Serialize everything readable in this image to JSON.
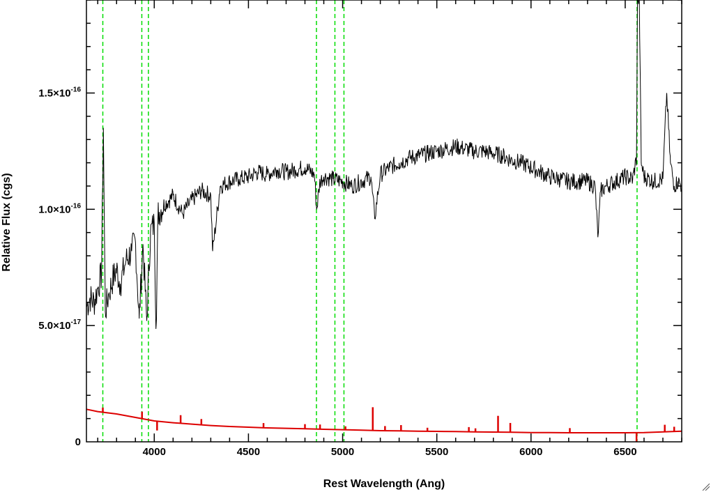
{
  "chart_data": {
    "type": "line",
    "title": "",
    "xlabel": "Rest Wavelength (Ang)",
    "ylabel": "Relative Flux (cgs)",
    "xlim": [
      3640,
      6800
    ],
    "ylim": [
      0,
      1.9e-16
    ],
    "x_ticks": [
      {
        "value": 4000,
        "label": "4000"
      },
      {
        "value": 4500,
        "label": "4500"
      },
      {
        "value": 5000,
        "label": "5000"
      },
      {
        "value": 5500,
        "label": "5500"
      },
      {
        "value": 6000,
        "label": "6000"
      },
      {
        "value": 6500,
        "label": "6500"
      }
    ],
    "y_ticks": [
      {
        "value": 0,
        "mantissa": "0",
        "exponent": ""
      },
      {
        "value": 5e-17,
        "mantissa": "5.0×10",
        "exponent": "-17"
      },
      {
        "value": 1e-16,
        "mantissa": "1.0×10",
        "exponent": "-16"
      },
      {
        "value": 1.5e-16,
        "mantissa": "1.5×10",
        "exponent": "-16"
      }
    ],
    "grid": false,
    "series": [
      {
        "color": "#000000",
        "style": "solid",
        "x": [
          3640,
          3660,
          3680,
          3700,
          3720,
          3730,
          3740,
          3760,
          3780,
          3800,
          3820,
          3850,
          3880,
          3900,
          3920,
          3940,
          3960,
          3980,
          4000,
          4010,
          4020,
          4050,
          4080,
          4100,
          4150,
          4200,
          4250,
          4300,
          4310,
          4350,
          4400,
          4450,
          4500,
          4550,
          4600,
          4650,
          4700,
          4750,
          4800,
          4850,
          4862,
          4880,
          4900,
          4950,
          5000,
          5050,
          5100,
          5150,
          5170,
          5200,
          5250,
          5300,
          5350,
          5400,
          5450,
          5500,
          5550,
          5600,
          5650,
          5700,
          5750,
          5800,
          5850,
          5900,
          5950,
          6000,
          6050,
          6100,
          6150,
          6200,
          6250,
          6300,
          6340,
          6355,
          6370,
          6400,
          6450,
          6500,
          6540,
          6560,
          6565,
          6575,
          6585,
          6600,
          6650,
          6700,
          6720,
          6740,
          6760,
          6780,
          6800
        ],
        "y": [
          5.8e-17,
          6.2e-17,
          6e-17,
          6.6e-17,
          7.2e-17,
          1.35e-16,
          5.6e-17,
          6.4e-17,
          7e-17,
          7.4e-17,
          6.8e-17,
          7.8e-17,
          8.2e-17,
          8.6e-17,
          5.3e-17,
          8.5e-17,
          5.2e-17,
          9e-17,
          9.4e-17,
          5e-17,
          9.8e-17,
          1.02e-16,
          1.04e-16,
          1.06e-16,
          9.8e-17,
          1.04e-16,
          1.08e-16,
          1.06e-16,
          8.2e-17,
          1.1e-16,
          1.12e-16,
          1.13e-16,
          1.14e-16,
          1.16e-16,
          1.15e-16,
          1.17e-16,
          1.16e-16,
          1.17e-16,
          1.18e-16,
          1.15e-16,
          1e-16,
          1.12e-16,
          1.14e-16,
          1.13e-16,
          1.12e-16,
          1.1e-16,
          1.12e-16,
          1.14e-16,
          9.6e-17,
          1.15e-16,
          1.18e-16,
          1.2e-16,
          1.22e-16,
          1.23e-16,
          1.24e-16,
          1.25e-16,
          1.26e-16,
          1.27e-16,
          1.26e-16,
          1.25e-16,
          1.25e-16,
          1.24e-16,
          1.23e-16,
          1.21e-16,
          1.2e-16,
          1.18e-16,
          1.16e-16,
          1.14e-16,
          1.13e-16,
          1.12e-16,
          1.12e-16,
          1.12e-16,
          1.1e-16,
          8.8e-17,
          1.08e-16,
          1.1e-16,
          1.12e-16,
          1.14e-16,
          1.13e-16,
          1.22e-16,
          1.9e-16,
          1.9e-16,
          1.2e-16,
          1.14e-16,
          1.12e-16,
          1.13e-16,
          1.5e-16,
          1.2e-16,
          1.1e-16,
          1.12e-16,
          1.1e-16
        ]
      },
      {
        "color": "#dd0000",
        "style": "solid",
        "x": [
          3640,
          3700,
          3800,
          3900,
          4000,
          4100,
          4200,
          4300,
          4400,
          4500,
          4600,
          4700,
          4800,
          4900,
          5000,
          5100,
          5200,
          5300,
          5400,
          5500,
          5600,
          5700,
          5800,
          5900,
          6000,
          6100,
          6200,
          6300,
          6400,
          6500,
          6600,
          6700,
          6800
        ],
        "y": [
          1.4e-17,
          1.3e-17,
          1.2e-17,
          1.05e-17,
          9e-18,
          8.2e-18,
          7.6e-18,
          7e-18,
          6.6e-18,
          6.3e-18,
          6e-18,
          5.8e-18,
          5.6e-18,
          5.4e-18,
          5.2e-18,
          5e-18,
          4.8e-18,
          4.7e-18,
          4.6e-18,
          4.5e-18,
          4.4e-18,
          4.3e-18,
          4.2e-18,
          4.1e-18,
          4e-18,
          4e-18,
          3.9e-18,
          3.9e-18,
          3.9e-18,
          3.9e-18,
          4e-18,
          4.3e-18,
          4.6e-18
        ]
      }
    ],
    "emission_spikes": {
      "color": "#dd0000",
      "x": [
        3727,
        3935,
        4015,
        4140,
        4250,
        4580,
        4800,
        4880,
        5015,
        5160,
        5225,
        5310,
        5450,
        5670,
        5705,
        5825,
        5890,
        6206,
        6560,
        6710,
        6760
      ],
      "height": [
        2e-18,
        3e-18,
        -4e-18,
        3.5e-18,
        2.5e-18,
        2e-18,
        2e-18,
        2e-18,
        1.5e-18,
        1e-17,
        2e-18,
        2.5e-18,
        1.5e-18,
        2e-18,
        1.5e-18,
        7e-18,
        4e-18,
        2e-18,
        -4e-18,
        3e-18,
        2e-18
      ]
    },
    "reference_lines": {
      "color": "#00dd00",
      "style": "dashed",
      "x": [
        3727,
        3934,
        3969,
        4861,
        4959,
        5007,
        6563
      ]
    }
  }
}
